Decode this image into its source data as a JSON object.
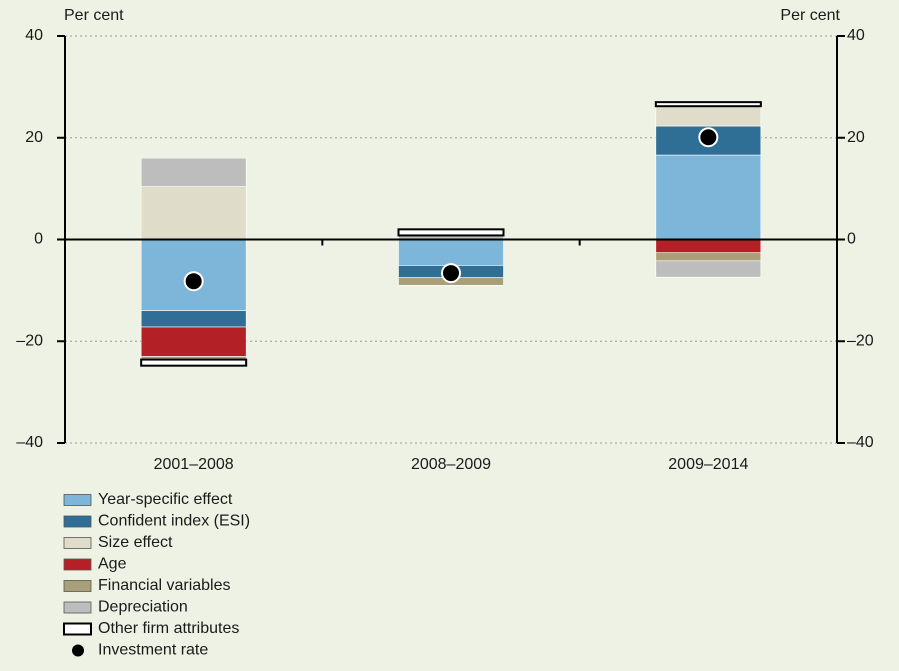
{
  "chart_data": {
    "type": "stacked-bar",
    "y_label": "Per cent",
    "y2_label": "Per cent",
    "categories": [
      "2001–2008",
      "2008–2009",
      "2009–2014"
    ],
    "ylim": [
      -40,
      40
    ],
    "yticks": [
      {
        "value": -40,
        "label": "–40"
      },
      {
        "value": -20,
        "label": "–20"
      },
      0,
      20,
      40
    ],
    "y2lim": [
      -40,
      40
    ],
    "y2ticks": [
      {
        "value": -40,
        "label": "–40"
      },
      {
        "value": -20,
        "label": "–20"
      },
      0,
      20,
      40
    ],
    "grid": true,
    "series": [
      {
        "name": "Year-specific effect",
        "color": "#7db6d9",
        "values": [
          -14,
          -5.1,
          16.6
        ]
      },
      {
        "name": "Confident index (ESI)",
        "color": "#2f6f95",
        "values": [
          -3.2,
          -2.4,
          5.7
        ]
      },
      {
        "name": "Size effect",
        "color": "#dfdcc9",
        "values": [
          10.4,
          0,
          3.9
        ]
      },
      {
        "name": "Age",
        "color": "#b32126",
        "values": [
          -5.8,
          0,
          -2.6
        ]
      },
      {
        "name": "Financial variables",
        "color": "#a99f78",
        "values": [
          -0.6,
          -1.5,
          -1.6
        ]
      },
      {
        "name": "Depreciation",
        "color": "#bdbdbd",
        "values": [
          5.6,
          0.8,
          -3.2
        ]
      },
      {
        "name": "Other firm attributes",
        "color": "#ffffff",
        "values": [
          -1.2,
          1.2,
          0.8
        ]
      },
      {
        "name": "Investment rate",
        "type": "dot",
        "color": "#000000",
        "values": [
          -8.2,
          -6.6,
          20.1
        ]
      }
    ]
  }
}
